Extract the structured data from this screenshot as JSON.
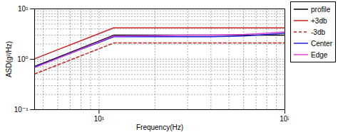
{
  "chart_data": {
    "type": "line",
    "x_label": "Frequency(Hz)",
    "y_label": "ASD(g²/Hz)",
    "log": true,
    "grid": true,
    "legend": "right",
    "xlim": [
      4.5,
      100
    ],
    "ylim": [
      0.1,
      10
    ],
    "xticks": [
      {
        "value": 10,
        "label": "10¹"
      },
      {
        "value": 100,
        "label": "10²"
      }
    ],
    "yticks": [
      {
        "value": 0.1,
        "label": "10⁻¹"
      },
      {
        "value": 1,
        "label": "10⁰"
      },
      {
        "value": 10,
        "label": "10¹"
      }
    ],
    "x": [
      4.5,
      12,
      20,
      30,
      40,
      50,
      60,
      70,
      80,
      90,
      100
    ],
    "series": [
      {
        "name": "profile",
        "color": "#000000",
        "line_style": "solid",
        "values": [
          0.72,
          3.0,
          3.0,
          3.0,
          3.0,
          3.0,
          3.0,
          3.0,
          3.0,
          3.0,
          3.0
        ]
      },
      {
        "name": "+3db",
        "color": "#cc2222",
        "line_style": "solid",
        "values": [
          1.02,
          4.2,
          4.2,
          4.2,
          4.2,
          4.2,
          4.2,
          4.2,
          4.2,
          4.2,
          4.2
        ]
      },
      {
        "name": "-3db",
        "color": "#cc2222",
        "line_style": "dashed",
        "values": [
          0.51,
          2.1,
          2.1,
          2.1,
          2.1,
          2.1,
          2.1,
          2.1,
          2.1,
          2.1,
          2.1
        ]
      },
      {
        "name": "Center",
        "color": "#2222dd",
        "line_style": "solid",
        "values": [
          0.7,
          2.8,
          2.8,
          2.8,
          2.8,
          2.85,
          2.9,
          3.0,
          3.1,
          3.2,
          3.3
        ]
      },
      {
        "name": "Edge",
        "color": "#dd44dd",
        "line_style": "solid",
        "values": [
          0.68,
          2.9,
          2.95,
          3.0,
          3.0,
          3.05,
          3.1,
          3.2,
          3.3,
          3.4,
          3.5
        ]
      }
    ]
  }
}
